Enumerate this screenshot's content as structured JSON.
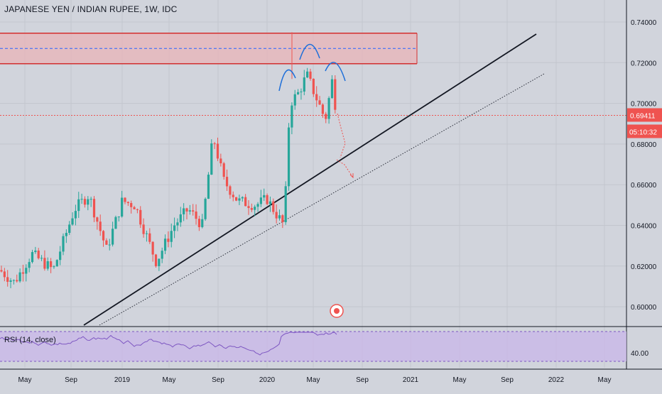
{
  "chart_data": {
    "type": "candlestick",
    "title": "JAPANESE YEN / INDIAN RUPEE, 1W, IDC",
    "price_axis": {
      "ylim": [
        0.59,
        0.745
      ],
      "ticks": [
        "0.74000",
        "0.72000",
        "0.70000",
        "0.68000",
        "0.66000",
        "0.64000",
        "0.62000",
        "0.60000"
      ],
      "tick_values": [
        0.74,
        0.72,
        0.7,
        0.68,
        0.66,
        0.64,
        0.62,
        0.6
      ]
    },
    "time_axis": {
      "labels": [
        "May",
        "Sep",
        "2019",
        "May",
        "Sep",
        "2020",
        "May",
        "Sep",
        "2021",
        "May",
        "Sep",
        "2022",
        "May"
      ]
    },
    "last_price": {
      "value": 0.69411,
      "label": "0.69411",
      "countdown": "05:10:32"
    },
    "resistance_zone": {
      "top": 0.7345,
      "mid": 0.727,
      "bottom": 0.7195
    },
    "annotations": [
      "head-and-shoulders pattern",
      "ascending trendline",
      "parallel dotted trendline",
      "projected drop arrows"
    ],
    "rsi": {
      "label": "RSI (14, close)",
      "tick_label": "40.00",
      "ylim": [
        25,
        85
      ]
    },
    "colors": {
      "background": "#d1d4dc",
      "up": "#26a69a",
      "down": "#ef5350",
      "zone_line": "#d32f2f",
      "rsi_line": "#7e57c2",
      "rsi_band": "#c9b8e8"
    }
  }
}
